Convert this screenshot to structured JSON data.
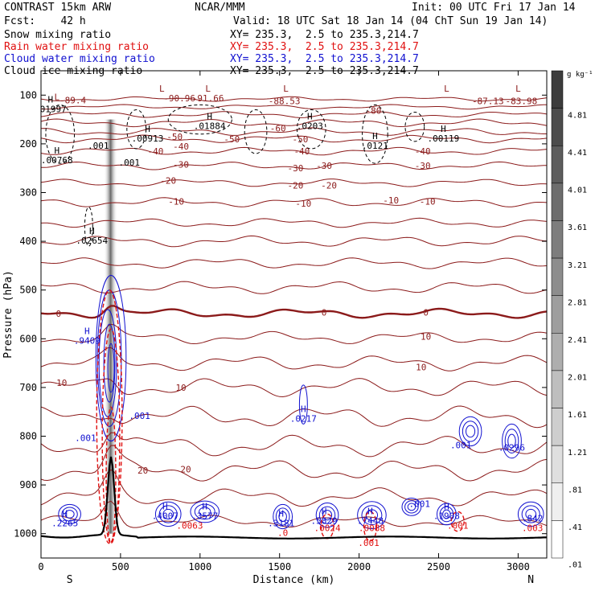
{
  "header": {
    "model": "CONTRAST 15km ARW",
    "org": "NCAR/MMM",
    "init": "Init: 00 UTC Fri 17 Jan 14",
    "fcst": "Fcst:    42 h",
    "valid": "Valid: 18 UTC Sat 18 Jan 14 (04 ChT Sun 19 Jan 14)",
    "fields": [
      {
        "name": "Snow mixing ratio",
        "xy": "XY= 235.3,  2.5 to 235.3,214.7",
        "color": "#000000"
      },
      {
        "name": "Rain water mixing ratio",
        "xy": "XY= 235.3,  2.5 to 235.3,214.7",
        "color": "#e01010"
      },
      {
        "name": "Cloud water mixing ratio",
        "xy": "XY= 235.3,  2.5 to 235.3,214.7",
        "color": "#1010d0"
      },
      {
        "name": "Cloud ice mixing ratio",
        "xy": "XY= 235.3,  2.5 to 235.3,214.7",
        "color": "#000000"
      }
    ]
  },
  "colorbar": {
    "unit": "g kg⁻¹",
    "labels": [
      "4.81",
      "4.41",
      "4.01",
      "3.61",
      "3.21",
      "2.81",
      "2.41",
      "2.01",
      "1.61",
      "1.21",
      ".81",
      ".41",
      ".01"
    ]
  },
  "chart_data": {
    "type": "contour",
    "xlabel": "Distance (km)",
    "ylabel": "Pressure (hPa)",
    "x_ticks": [
      0,
      500,
      1000,
      1500,
      2000,
      2500,
      3000
    ],
    "y_ticks": [
      100,
      200,
      300,
      400,
      500,
      600,
      700,
      800,
      900,
      1000
    ],
    "xlim": [
      0,
      3180
    ],
    "ylim": [
      1050,
      50
    ],
    "x_end_labels": {
      "left": "S",
      "right": "N"
    },
    "temperature_contour_labels": [
      {
        "x": 1530,
        "p": 112,
        "text": "-88.53"
      },
      {
        "x": 2810,
        "p": 112,
        "text": "-87.13"
      },
      {
        "x": 3020,
        "p": 112,
        "text": "-83.98"
      },
      {
        "x": 870,
        "p": 106,
        "text": "-90.96"
      },
      {
        "x": 1050,
        "p": 106,
        "text": "-91.66"
      },
      {
        "x": 200,
        "p": 110,
        "text": "-89.4"
      },
      {
        "x": 2090,
        "p": 132,
        "text": "-80"
      },
      {
        "x": 1490,
        "p": 168,
        "text": "-60"
      },
      {
        "x": 1200,
        "p": 190,
        "text": "-50"
      },
      {
        "x": 840,
        "p": 185,
        "text": "-50"
      },
      {
        "x": 1630,
        "p": 190,
        "text": "-50"
      },
      {
        "x": 720,
        "p": 215,
        "text": "-40"
      },
      {
        "x": 880,
        "p": 205,
        "text": "-40"
      },
      {
        "x": 1640,
        "p": 215,
        "text": "-40"
      },
      {
        "x": 2400,
        "p": 215,
        "text": "-40"
      },
      {
        "x": 880,
        "p": 242,
        "text": "-30"
      },
      {
        "x": 1600,
        "p": 250,
        "text": "-30"
      },
      {
        "x": 1780,
        "p": 245,
        "text": "-30"
      },
      {
        "x": 2400,
        "p": 245,
        "text": "-30"
      },
      {
        "x": 800,
        "p": 275,
        "text": "-20"
      },
      {
        "x": 1600,
        "p": 285,
        "text": "-20"
      },
      {
        "x": 1810,
        "p": 285,
        "text": "-20"
      },
      {
        "x": 850,
        "p": 318,
        "text": "-10"
      },
      {
        "x": 1650,
        "p": 322,
        "text": "-10"
      },
      {
        "x": 2200,
        "p": 316,
        "text": "-10"
      },
      {
        "x": 2430,
        "p": 318,
        "text": "-10"
      },
      {
        "x": 110,
        "p": 548,
        "text": "0"
      },
      {
        "x": 1780,
        "p": 546,
        "text": "0"
      },
      {
        "x": 2420,
        "p": 546,
        "text": "0"
      },
      {
        "x": 2420,
        "p": 595,
        "text": "10"
      },
      {
        "x": 2390,
        "p": 658,
        "text": "10"
      },
      {
        "x": 130,
        "p": 690,
        "text": "10"
      },
      {
        "x": 880,
        "p": 700,
        "text": "10"
      },
      {
        "x": 640,
        "p": 870,
        "text": "20"
      },
      {
        "x": 910,
        "p": 868,
        "text": "20"
      }
    ],
    "temperature_levels": [
      {
        "base": 108,
        "amp": 3,
        "label": "-88"
      },
      {
        "base": 124,
        "amp": 3,
        "label": "-80"
      },
      {
        "base": 140,
        "amp": 4,
        "label": ""
      },
      {
        "base": 157,
        "amp": 5,
        "label": ""
      },
      {
        "base": 175,
        "amp": 5,
        "label": "-60"
      },
      {
        "base": 190,
        "amp": 5,
        "label": "-50"
      },
      {
        "base": 215,
        "amp": 5,
        "label": "-40"
      },
      {
        "base": 245,
        "amp": 5,
        "label": "-30"
      },
      {
        "base": 280,
        "amp": 5,
        "label": "-20"
      },
      {
        "base": 320,
        "amp": 6,
        "label": "-10"
      },
      {
        "base": 362,
        "amp": 6,
        "label": ""
      },
      {
        "base": 400,
        "amp": 7,
        "label": ""
      },
      {
        "base": 445,
        "amp": 7,
        "label": ""
      },
      {
        "base": 495,
        "amp": 8,
        "label": ""
      },
      {
        "base": 548,
        "amp": 6,
        "label": "0",
        "bold": true
      },
      {
        "base": 598,
        "amp": 8,
        "label": ""
      },
      {
        "base": 650,
        "amp": 10,
        "label": "10"
      },
      {
        "base": 700,
        "amp": 12,
        "label": ""
      },
      {
        "base": 760,
        "amp": 14,
        "label": ""
      },
      {
        "base": 820,
        "amp": 14,
        "label": ""
      },
      {
        "base": 870,
        "amp": 14,
        "label": "20"
      },
      {
        "base": 925,
        "amp": 12,
        "label": ""
      },
      {
        "base": 975,
        "amp": 8,
        "label": ""
      }
    ],
    "extrema": [
      {
        "x": 100,
        "p": 120,
        "type": "L",
        "value": "",
        "color": "#8b1a1a"
      },
      {
        "x": 760,
        "p": 103,
        "type": "L",
        "value": "",
        "color": "#8b1a1a"
      },
      {
        "x": 1050,
        "p": 103,
        "type": "L",
        "value": "",
        "color": "#8b1a1a"
      },
      {
        "x": 1540,
        "p": 103,
        "type": "L",
        "value": "",
        "color": "#8b1a1a"
      },
      {
        "x": 2550,
        "p": 103,
        "type": "L",
        "value": "",
        "color": "#8b1a1a"
      },
      {
        "x": 3000,
        "p": 103,
        "type": "L",
        "value": "",
        "color": "#8b1a1a"
      },
      {
        "x": 60,
        "p": 125,
        "type": "H",
        "value": ".01997",
        "color": "#000000"
      },
      {
        "x": 1060,
        "p": 160,
        "type": "H",
        "value": ".01884",
        "color": "#000000"
      },
      {
        "x": 1690,
        "p": 160,
        "type": "H",
        "value": ".0203",
        "color": "#000000"
      },
      {
        "x": 670,
        "p": 185,
        "type": "H",
        "value": ".00913",
        "color": "#000000"
      },
      {
        "x": 2530,
        "p": 185,
        "type": "H",
        "value": ".00119",
        "color": "#000000"
      },
      {
        "x": 2100,
        "p": 200,
        "type": "H",
        "value": ".0121",
        "color": "#000000"
      },
      {
        "x": 100,
        "p": 230,
        "type": "H",
        "value": ".00768",
        "color": "#000000"
      },
      {
        "x": 360,
        "p": 200,
        "type": "",
        "value": ".001",
        "color": "#000000"
      },
      {
        "x": 555,
        "p": 235,
        "type": "",
        "value": ".001",
        "color": "#000000"
      },
      {
        "x": 320,
        "p": 395,
        "type": "H",
        "value": ".02654",
        "color": "#000000"
      },
      {
        "x": 290,
        "p": 600,
        "type": "H",
        "value": ".9409",
        "color": "#1010d0"
      },
      {
        "x": 1650,
        "p": 760,
        "type": "H",
        "value": ".0217",
        "color": "#1010d0"
      },
      {
        "x": 620,
        "p": 755,
        "type": "",
        "value": ".001",
        "color": "#1010d0"
      },
      {
        "x": 280,
        "p": 800,
        "type": "",
        "value": ".001",
        "color": "#1010d0"
      },
      {
        "x": 2640,
        "p": 815,
        "type": "",
        "value": ".001",
        "color": "#1010d0"
      },
      {
        "x": 2960,
        "p": 820,
        "type": "",
        "value": ".0296",
        "color": "#1010d0"
      },
      {
        "x": 150,
        "p": 975,
        "type": "H",
        "value": ".2265",
        "color": "#1010d0"
      },
      {
        "x": 780,
        "p": 960,
        "type": "H",
        "value": ".4007",
        "color": "#1010d0"
      },
      {
        "x": 1030,
        "p": 960,
        "type": "H",
        "value": ".3577",
        "color": "#1010d0"
      },
      {
        "x": 1510,
        "p": 975,
        "type": "H",
        "value": ".3181",
        "color": "#1010d0"
      },
      {
        "x": 1780,
        "p": 970,
        "type": "H",
        "value": ".5829",
        "color": "#1010d0"
      },
      {
        "x": 2070,
        "p": 970,
        "type": "H",
        "value": ".7448",
        "color": "#1010d0"
      },
      {
        "x": 2550,
        "p": 960,
        "type": "H",
        "value": ".1908",
        "color": "#1010d0"
      },
      {
        "x": 3090,
        "p": 965,
        "type": "",
        "value": ".842",
        "color": "#1010d0"
      },
      {
        "x": 2380,
        "p": 935,
        "type": "",
        "value": ".001",
        "color": "#1010d0"
      },
      {
        "x": 935,
        "p": 980,
        "type": "",
        "value": ".0063",
        "color": "#e01010"
      },
      {
        "x": 1800,
        "p": 985,
        "type": "",
        "value": ".0024",
        "color": "#e01010"
      },
      {
        "x": 2080,
        "p": 985,
        "type": "",
        "value": ".0088",
        "color": "#e01010"
      },
      {
        "x": 2060,
        "p": 1015,
        "type": "",
        "value": ".001",
        "color": "#e01010"
      },
      {
        "x": 2620,
        "p": 980,
        "type": "",
        "value": ".001",
        "color": "#e01010"
      },
      {
        "x": 3090,
        "p": 985,
        "type": "",
        "value": ".003",
        "color": "#e01010"
      },
      {
        "x": 1520,
        "p": 995,
        "type": "",
        "value": ".0",
        "color": "#e01010"
      }
    ],
    "colors": {
      "temperature": "#8b1a1a",
      "snow": "#000000",
      "rain": "#e01010",
      "cloud_water": "#1010d0",
      "terrain": "#000000"
    }
  }
}
